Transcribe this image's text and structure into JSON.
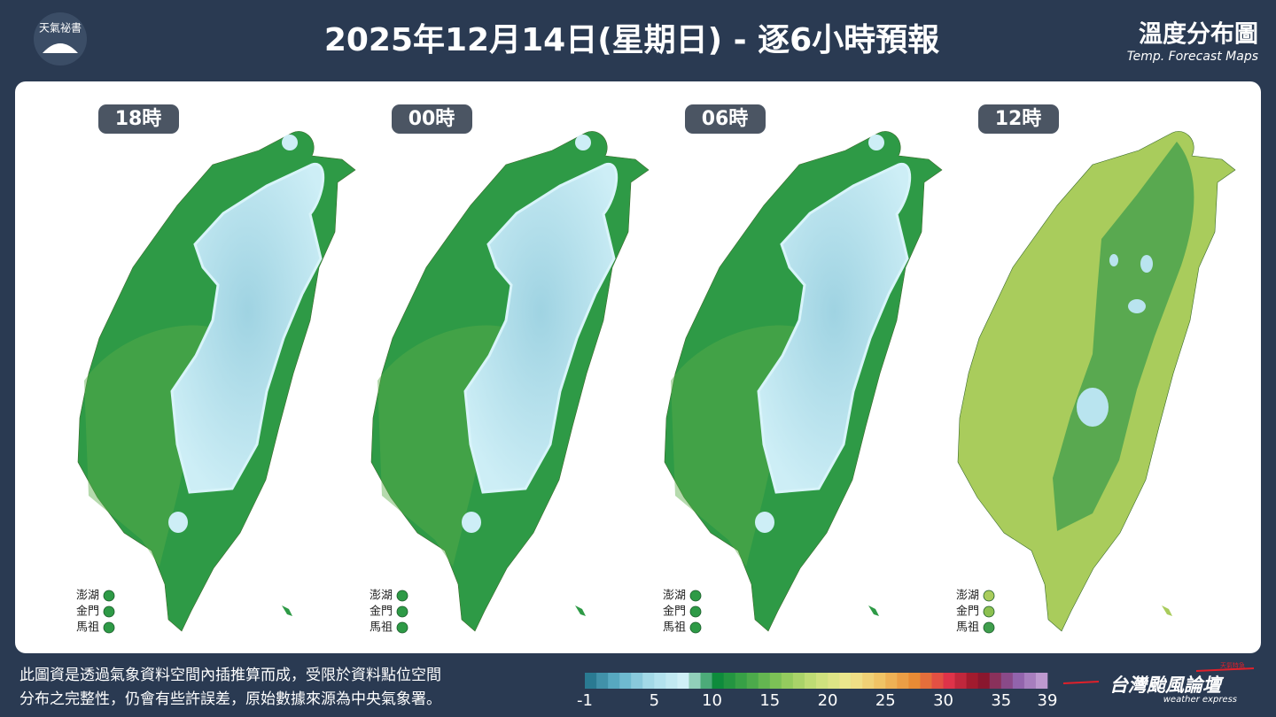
{
  "header": {
    "logo_text": "天氣祕書",
    "title": "2025年12月14日(星期日) - 逐6小時預報",
    "brand_title": "溫度分布圖",
    "brand_subtitle": "Temp. Forecast Maps"
  },
  "panels": [
    {
      "label": "18時",
      "style": "cold"
    },
    {
      "label": "00時",
      "style": "cold"
    },
    {
      "label": "06時",
      "style": "cold"
    },
    {
      "label": "12時",
      "style": "warm"
    }
  ],
  "island_labels": [
    "澎湖",
    "金門",
    "馬祖"
  ],
  "footer": {
    "note_lines": [
      "此圖資是透過氣象資料空間內插推算而成，受限於資料點位空間",
      "分布之完整性，仍會有些許誤差，原始數據來源為中央氣象署。"
    ]
  },
  "colorbar": {
    "range": [
      -1,
      39
    ],
    "ticks": [
      -1,
      5,
      10,
      15,
      20,
      25,
      30,
      35,
      39
    ],
    "colors": [
      "#1f6f86",
      "#5fb0c8",
      "#a8dcea",
      "#d0f0f7",
      "#0d8a3c",
      "#47a84a",
      "#8cc85a",
      "#c8e07a",
      "#f0e890",
      "#f0c062",
      "#e88a34",
      "#e0344a",
      "#8a1224",
      "#8a5aa6",
      "#c8a6d8"
    ]
  },
  "brand": {
    "tag": "天氣特急",
    "name": "台灣颱風論壇",
    "subname": "weather express"
  }
}
